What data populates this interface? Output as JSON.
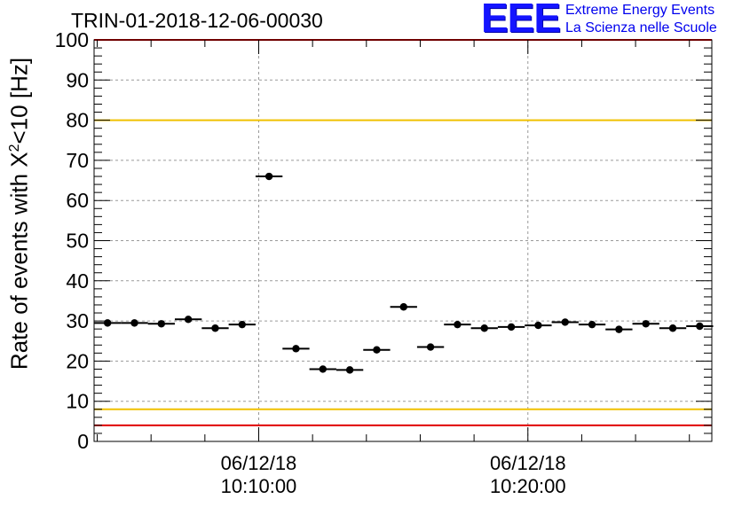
{
  "title": "TRIN-01-2018-12-06-00030",
  "logo": {
    "mark": "EEE",
    "line1": "Extreme Energy Events",
    "line2": "La Scienza nelle Scuole"
  },
  "chart_data": {
    "type": "scatter",
    "ylabel_prefix": "Rate of events with X",
    "ylabel_sup": "2",
    "ylabel_suffix": "<10 [Hz]",
    "ylim": [
      0,
      100
    ],
    "yticks": [
      0,
      10,
      20,
      30,
      40,
      50,
      60,
      70,
      80,
      90,
      100
    ],
    "xlim": [
      "2018-12-06 10:03:53",
      "2018-12-06 10:26:50"
    ],
    "xtick_labels": [
      {
        "time": "2018-12-06 10:10:00",
        "date": "06/12/18",
        "clock": "10:10:00"
      },
      {
        "time": "2018-12-06 10:20:00",
        "date": "06/12/18",
        "clock": "10:20:00"
      }
    ],
    "grid": true,
    "bin_width_seconds": 60,
    "points": [
      {
        "time": "2018-12-06 10:04:23",
        "value": 29.5
      },
      {
        "time": "2018-12-06 10:05:23",
        "value": 29.5
      },
      {
        "time": "2018-12-06 10:06:23",
        "value": 29.3
      },
      {
        "time": "2018-12-06 10:07:23",
        "value": 30.4
      },
      {
        "time": "2018-12-06 10:08:23",
        "value": 28.2
      },
      {
        "time": "2018-12-06 10:09:23",
        "value": 29.1
      },
      {
        "time": "2018-12-06 10:10:23",
        "value": 66.0
      },
      {
        "time": "2018-12-06 10:11:23",
        "value": 23.1
      },
      {
        "time": "2018-12-06 10:12:23",
        "value": 18.0
      },
      {
        "time": "2018-12-06 10:13:23",
        "value": 17.8
      },
      {
        "time": "2018-12-06 10:14:23",
        "value": 22.8
      },
      {
        "time": "2018-12-06 10:15:23",
        "value": 33.5
      },
      {
        "time": "2018-12-06 10:16:23",
        "value": 23.5
      },
      {
        "time": "2018-12-06 10:17:23",
        "value": 29.1
      },
      {
        "time": "2018-12-06 10:18:23",
        "value": 28.2
      },
      {
        "time": "2018-12-06 10:19:23",
        "value": 28.5
      },
      {
        "time": "2018-12-06 10:20:23",
        "value": 28.9
      },
      {
        "time": "2018-12-06 10:21:23",
        "value": 29.7
      },
      {
        "time": "2018-12-06 10:22:23",
        "value": 29.1
      },
      {
        "time": "2018-12-06 10:23:23",
        "value": 27.9
      },
      {
        "time": "2018-12-06 10:24:23",
        "value": 29.3
      },
      {
        "time": "2018-12-06 10:25:23",
        "value": 28.2
      },
      {
        "time": "2018-12-06 10:26:23",
        "value": 28.7
      }
    ],
    "reference_lines": [
      {
        "value": 100,
        "color": "#e00000"
      },
      {
        "value": 80,
        "color": "#f0c000"
      },
      {
        "value": 8,
        "color": "#f0c000"
      },
      {
        "value": 4,
        "color": "#e00000"
      }
    ]
  }
}
